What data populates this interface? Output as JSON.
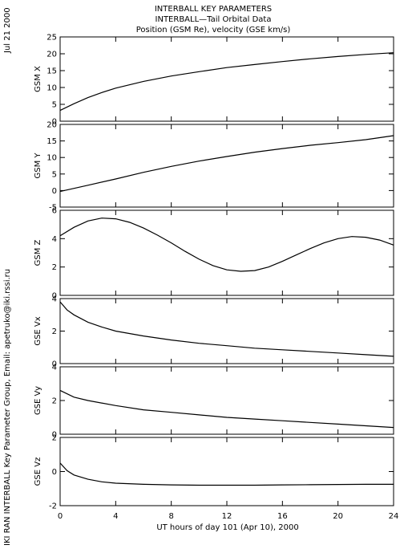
{
  "title_lines": [
    "INTERBALL KEY PARAMETERS",
    "INTERBALL—Tail Orbital Data",
    "Position (GSM Re), velocity (GSE km/s)"
  ],
  "side_date": "Jul 21 2000",
  "side_credit": "IKI RAN INTERBALL Key Parameter Group, Email: apetruko@iki.rssi.ru",
  "colors": {
    "line": "#000000",
    "background": "#ffffff"
  },
  "chart_data": {
    "type": "line",
    "xlabel": "UT hours of day 101 (Apr 10), 2000",
    "xlim": [
      0,
      24
    ],
    "xticks": [
      0,
      4,
      8,
      12,
      16,
      20,
      24
    ],
    "panels": [
      {
        "ylabel": "GSM X",
        "ylim": [
          0,
          25
        ],
        "yticks": [
          0,
          5,
          10,
          15,
          20,
          25
        ],
        "x": [
          0,
          1,
          2,
          3,
          4,
          6,
          8,
          10,
          12,
          14,
          16,
          18,
          20,
          22,
          24
        ],
        "y": [
          3.2,
          5.2,
          7.0,
          8.5,
          9.8,
          11.8,
          13.4,
          14.7,
          15.9,
          16.8,
          17.7,
          18.5,
          19.2,
          19.8,
          20.3
        ]
      },
      {
        "ylabel": "GSM Y",
        "ylim": [
          -5,
          20
        ],
        "yticks": [
          -5,
          0,
          5,
          10,
          15,
          20
        ],
        "x": [
          0,
          2,
          4,
          6,
          8,
          10,
          12,
          14,
          16,
          18,
          20,
          22,
          24
        ],
        "y": [
          -0.3,
          1.6,
          3.5,
          5.5,
          7.3,
          8.9,
          10.3,
          11.6,
          12.7,
          13.7,
          14.5,
          15.4,
          16.6
        ]
      },
      {
        "ylabel": "GSM Z",
        "ylim": [
          0,
          6
        ],
        "yticks": [
          0,
          2,
          4,
          6
        ],
        "x": [
          0,
          1,
          2,
          3,
          4,
          5,
          6,
          7,
          8,
          9,
          10,
          11,
          12,
          13,
          14,
          15,
          16,
          17,
          18,
          19,
          20,
          21,
          22,
          23,
          24
        ],
        "y": [
          4.2,
          4.8,
          5.25,
          5.45,
          5.4,
          5.15,
          4.75,
          4.25,
          3.7,
          3.1,
          2.55,
          2.1,
          1.8,
          1.7,
          1.75,
          2.0,
          2.4,
          2.85,
          3.3,
          3.7,
          4.0,
          4.15,
          4.1,
          3.9,
          3.55
        ]
      },
      {
        "ylabel": "GSE Vx",
        "ylim": [
          0,
          4
        ],
        "yticks": [
          0,
          2,
          4
        ],
        "x": [
          0,
          0.5,
          1,
          2,
          3,
          4,
          6,
          8,
          10,
          12,
          14,
          16,
          18,
          20,
          22,
          24
        ],
        "y": [
          3.8,
          3.3,
          3.0,
          2.55,
          2.25,
          2.0,
          1.7,
          1.45,
          1.25,
          1.1,
          0.95,
          0.85,
          0.75,
          0.65,
          0.55,
          0.45
        ]
      },
      {
        "ylabel": "GSE Vy",
        "ylim": [
          0,
          4
        ],
        "yticks": [
          0,
          2,
          4
        ],
        "x": [
          0,
          1,
          2,
          4,
          6,
          8,
          10,
          12,
          14,
          16,
          18,
          20,
          22,
          24
        ],
        "y": [
          2.6,
          2.2,
          2.0,
          1.7,
          1.45,
          1.3,
          1.15,
          1.0,
          0.9,
          0.8,
          0.7,
          0.6,
          0.5,
          0.4
        ]
      },
      {
        "ylabel": "GSE Vz",
        "ylim": [
          -2,
          2
        ],
        "yticks": [
          -2,
          0,
          2
        ],
        "x": [
          0,
          0.5,
          1,
          2,
          3,
          4,
          6,
          8,
          10,
          12,
          14,
          16,
          18,
          20,
          22,
          24
        ],
        "y": [
          0.5,
          0.05,
          -0.2,
          -0.45,
          -0.6,
          -0.68,
          -0.75,
          -0.78,
          -0.8,
          -0.8,
          -0.8,
          -0.78,
          -0.77,
          -0.76,
          -0.75,
          -0.75
        ]
      }
    ]
  }
}
